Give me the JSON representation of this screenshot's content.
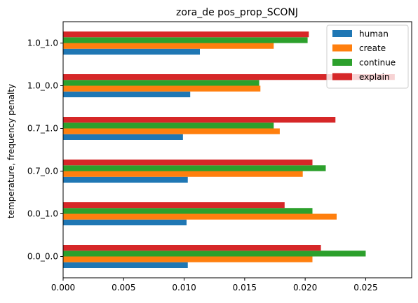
{
  "chart_data": {
    "type": "bar",
    "orientation": "horizontal",
    "title": "zora_de pos_prop_SCONJ",
    "xlabel": "",
    "ylabel": "temperature, frequency penalty",
    "categories": [
      "0.0_0.0",
      "0.0_1.0",
      "0.7_0.0",
      "0.7_1.0",
      "1.0_0.0",
      "1.0_1.0"
    ],
    "series": [
      {
        "name": "human",
        "color": "#1f77b4",
        "values": [
          0.0103,
          0.0102,
          0.0103,
          0.0099,
          0.0105,
          0.0113
        ]
      },
      {
        "name": "create",
        "color": "#ff7f0e",
        "values": [
          0.0206,
          0.0226,
          0.0198,
          0.0179,
          0.0163,
          0.0174
        ]
      },
      {
        "name": "continue",
        "color": "#2ca02c",
        "values": [
          0.025,
          0.0206,
          0.0217,
          0.0174,
          0.0162,
          0.0202
        ]
      },
      {
        "name": "explain",
        "color": "#d62728",
        "values": [
          0.0213,
          0.0183,
          0.0206,
          0.0225,
          0.0274,
          0.0203
        ]
      }
    ],
    "xlim": [
      0,
      0.0288
    ],
    "xticks": [
      "0.000",
      "0.005",
      "0.010",
      "0.015",
      "0.020",
      "0.025"
    ],
    "xtick_values": [
      0,
      0.005,
      0.01,
      0.015,
      0.02,
      0.025
    ],
    "grid": false,
    "legend_position": "top-right"
  }
}
